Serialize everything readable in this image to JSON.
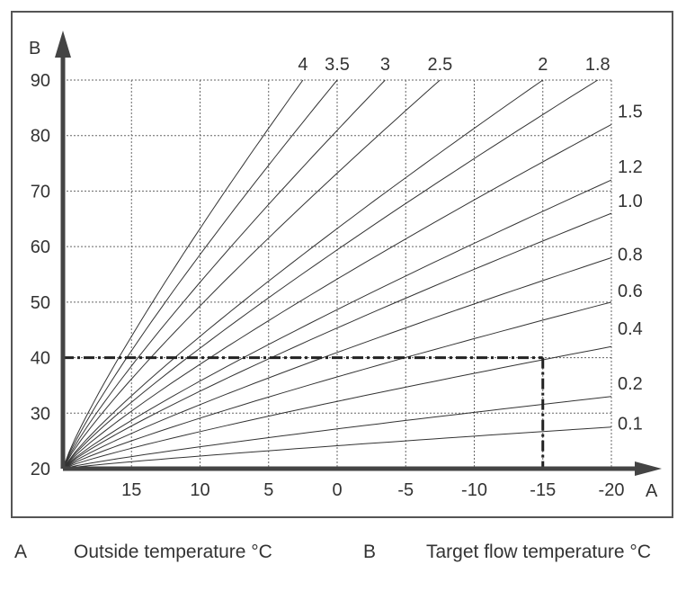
{
  "chart_data": {
    "type": "line",
    "x_axis": {
      "letter": "A",
      "ticks": [
        15,
        10,
        5,
        0,
        -5,
        -10,
        -15,
        -20
      ],
      "tick_labels": [
        "15",
        "10",
        "5",
        "0",
        "-5",
        "-10",
        "-15",
        "-20"
      ],
      "range": [
        20,
        -20
      ],
      "reversed": true
    },
    "y_axis": {
      "letter": "B",
      "ticks": [
        20,
        30,
        40,
        50,
        60,
        70,
        80,
        90
      ],
      "tick_labels": [
        "20",
        "30",
        "40",
        "50",
        "60",
        "70",
        "80",
        "90"
      ],
      "range": [
        20,
        90
      ]
    },
    "grid": "dashed",
    "origin": {
      "x": 20,
      "y": 20
    },
    "series": [
      {
        "name": "4",
        "end": {
          "x": 2.5,
          "y": 90
        }
      },
      {
        "name": "3.5",
        "end": {
          "x": 0,
          "y": 90
        }
      },
      {
        "name": "3",
        "end": {
          "x": -3.5,
          "y": 90
        }
      },
      {
        "name": "2.5",
        "end": {
          "x": -7.5,
          "y": 90
        }
      },
      {
        "name": "2",
        "end": {
          "x": -15,
          "y": 90
        }
      },
      {
        "name": "1.8",
        "end": {
          "x": -19,
          "y": 90
        }
      },
      {
        "name": "1.5",
        "end": {
          "x": -20,
          "y": 82
        }
      },
      {
        "name": "1.2",
        "end": {
          "x": -20,
          "y": 72
        }
      },
      {
        "name": "1.0",
        "end": {
          "x": -20,
          "y": 66
        }
      },
      {
        "name": "0.8",
        "end": {
          "x": -20,
          "y": 58
        }
      },
      {
        "name": "0.6",
        "end": {
          "x": -20,
          "y": 50
        }
      },
      {
        "name": "0.4",
        "end": {
          "x": -20,
          "y": 42
        }
      },
      {
        "name": "0.2",
        "end": {
          "x": -20,
          "y": 33
        }
      },
      {
        "name": "0.1",
        "end": {
          "x": -20,
          "y": 27.5
        }
      }
    ],
    "example_reading": {
      "x": -15,
      "y": 40,
      "curve": "0.4"
    }
  },
  "legend": {
    "items": [
      {
        "key": "A",
        "text": "Outside temperature °C"
      },
      {
        "key": "B",
        "text": "Target flow temperature °C"
      }
    ]
  }
}
